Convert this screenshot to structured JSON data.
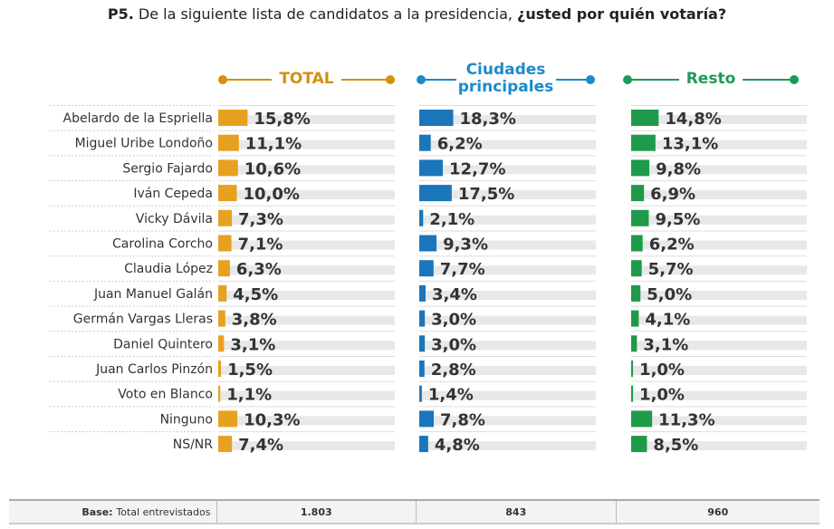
{
  "title": {
    "prefix": "P5.",
    "text": " De la siguiente lista de candidatos a la presidencia, ",
    "emphasis": "¿usted por quién votaría?"
  },
  "chart_data": {
    "type": "bar",
    "orientation": "horizontal",
    "value_format": "percent, comma decimal",
    "categories": [
      "Abelardo de la Espriella",
      "Miguel Uribe Londoño",
      "Sergio Fajardo",
      "Iván Cepeda",
      "Vicky Dávila",
      "Carolina Corcho",
      "Claudia López",
      "Juan Manuel Galán",
      "Germán Vargas Lleras",
      "Daniel Quintero",
      "Juan Carlos Pinzón",
      "Voto en Blanco",
      "Ninguno",
      "NS/NR"
    ],
    "series": [
      {
        "name": "TOTAL",
        "color": "#E8A020",
        "values": [
          15.8,
          11.1,
          10.6,
          10.0,
          7.3,
          7.1,
          6.3,
          4.5,
          3.8,
          3.1,
          1.5,
          1.1,
          10.3,
          7.4
        ]
      },
      {
        "name": "Ciudades principales",
        "color": "#1B75BB",
        "values": [
          18.3,
          6.2,
          12.7,
          17.5,
          2.1,
          9.3,
          7.7,
          3.4,
          3.0,
          3.0,
          2.8,
          1.4,
          7.8,
          4.8
        ]
      },
      {
        "name": "Resto",
        "color": "#1E9A4A",
        "values": [
          14.8,
          13.1,
          9.8,
          6.9,
          9.5,
          6.2,
          5.7,
          5.0,
          4.1,
          3.1,
          1.0,
          1.0,
          11.3,
          8.5
        ]
      }
    ],
    "header_colors": [
      "#D4900F",
      "#1B8ACB",
      "#1E9A5A"
    ]
  },
  "base": {
    "label": "Base:",
    "text": "Total entrevistados",
    "values": [
      "1.803",
      "843",
      "960"
    ]
  }
}
